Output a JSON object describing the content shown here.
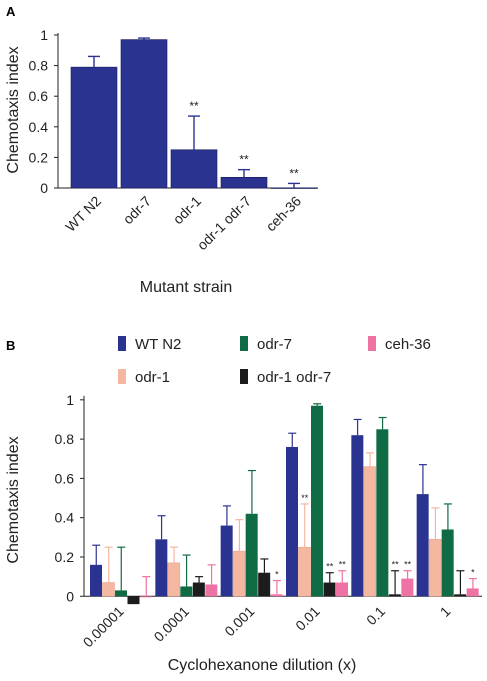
{
  "chart_data": [
    {
      "panel": "A",
      "type": "bar",
      "categories": [
        "WT N2",
        "odr-7",
        "odr-1",
        "odr-1 odr-7",
        "ceh-36"
      ],
      "values": [
        0.79,
        0.97,
        0.25,
        0.07,
        0.0
      ],
      "errors": [
        0.07,
        0.01,
        0.22,
        0.05,
        0.03
      ],
      "significance": [
        "",
        "",
        "**",
        "**",
        "**"
      ],
      "color": "#2b3390",
      "xlabel": "Mutant strain",
      "ylabel": "Chemotaxis index",
      "ylim": [
        0,
        1
      ],
      "yticks": [
        "0",
        "0.2",
        "0.4",
        "0.6",
        "0.8",
        "1"
      ]
    },
    {
      "panel": "B",
      "type": "bar",
      "categories": [
        "0.00001",
        "0.0001",
        "0.001",
        "0.01",
        "0.1",
        "1"
      ],
      "series": [
        {
          "name": "WT N2",
          "color": "#2b3390",
          "values": [
            0.16,
            0.29,
            0.36,
            0.76,
            0.82,
            0.52
          ],
          "errors": [
            0.1,
            0.12,
            0.1,
            0.07,
            0.08,
            0.15
          ],
          "significance": [
            "",
            "",
            "",
            "",
            "",
            ""
          ]
        },
        {
          "name": "odr-1",
          "color": "#f4b7a0",
          "values": [
            0.07,
            0.17,
            0.23,
            0.25,
            0.66,
            0.29
          ],
          "errors": [
            0.18,
            0.08,
            0.16,
            0.22,
            0.07,
            0.16
          ],
          "significance": [
            "",
            "",
            "",
            "**",
            "",
            ""
          ]
        },
        {
          "name": "odr-7",
          "color": "#0f6b44",
          "values": [
            0.03,
            0.05,
            0.42,
            0.97,
            0.85,
            0.34
          ],
          "errors": [
            0.22,
            0.16,
            0.22,
            0.01,
            0.06,
            0.13
          ],
          "significance": [
            "",
            "",
            "",
            "",
            "",
            ""
          ]
        },
        {
          "name": "odr-1 odr-7",
          "color": "#1c1c1c",
          "values": [
            -0.04,
            0.07,
            0.12,
            0.07,
            0.01,
            0.01
          ],
          "errors": [
            0.0,
            0.03,
            0.07,
            0.05,
            0.12,
            0.12
          ],
          "significance": [
            "",
            "",
            "",
            "**",
            "**",
            ""
          ]
        },
        {
          "name": "ceh-36",
          "color": "#ee72a4",
          "values": [
            0.0,
            0.06,
            0.01,
            0.07,
            0.09,
            0.04
          ],
          "errors": [
            0.1,
            0.1,
            0.07,
            0.06,
            0.04,
            0.05
          ],
          "significance": [
            "",
            "",
            "*",
            "**",
            "**",
            "*"
          ]
        }
      ],
      "legend_order": [
        "WT N2",
        "odr-7",
        "ceh-36",
        "odr-1",
        "odr-1 odr-7"
      ],
      "xlabel": "Cyclohexanone dilution (x)",
      "ylabel": "Chemotaxis index",
      "ylim": [
        -0.08,
        1.05
      ],
      "yticks": [
        "0",
        "0.2",
        "0.4",
        "0.6",
        "0.8",
        "1"
      ]
    }
  ]
}
